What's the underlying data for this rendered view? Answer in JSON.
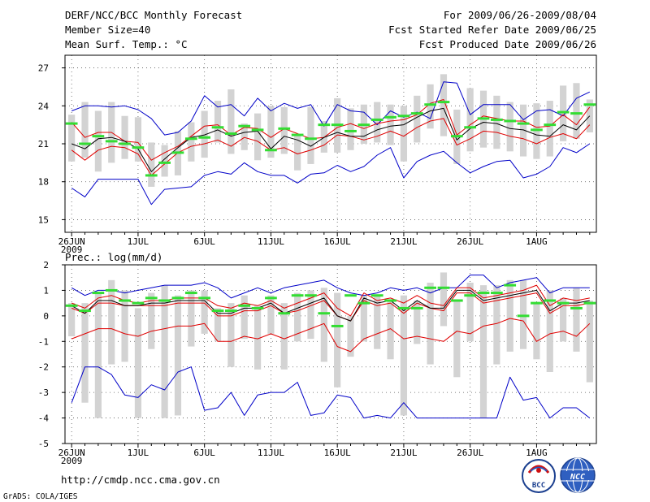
{
  "header": {
    "left": [
      "DERF/NCC/BCC Monthly Forecast",
      "Member Size=40",
      "Mean Surf. Temp.: °C"
    ],
    "right": [
      "For 2009/06/26-2009/08/04",
      "Fcst Started Refer Date 2009/06/25",
      "Fcst Produced Date 2009/06/26"
    ]
  },
  "footer": {
    "url": "http://cmdp.ncc.cma.gov.cn",
    "grads": "GrADS: COLA/IGES",
    "logo1_text": "BCC",
    "logo2_text": "NCC"
  },
  "colors": {
    "bar": "#d3d3d3",
    "envelope": "#0000c8",
    "spread": "#e00000",
    "mean": "#000000",
    "observed": "#33dd33"
  },
  "chart_data": [
    {
      "type": "line",
      "title": "Mean Surf. Temp.: °C",
      "x_tick_labels": [
        "26JUN",
        "1JUL",
        "6JUL",
        "11JUL",
        "16JUL",
        "21JUL",
        "26JUL",
        "1AUG"
      ],
      "x_year_label": "2009",
      "days": 40,
      "ylim": [
        14,
        28
      ],
      "yticks": [
        15,
        18,
        21,
        24,
        27
      ],
      "series": [
        {
          "name": "max",
          "values": [
            23.6,
            24.0,
            24.0,
            23.9,
            24.0,
            23.7,
            23.0,
            21.7,
            21.9,
            22.8,
            24.8,
            23.9,
            24.1,
            23.2,
            24.6,
            23.6,
            24.2,
            23.8,
            24.1,
            22.4,
            24.1,
            23.6,
            23.5,
            22.5,
            23.6,
            23.1,
            23.5,
            23.0,
            25.9,
            25.8,
            23.3,
            24.1,
            24.1,
            24.1,
            22.9,
            23.6,
            23.7,
            23.2,
            24.6,
            25.1
          ]
        },
        {
          "name": "upper",
          "values": [
            22.7,
            21.5,
            21.9,
            21.9,
            21.2,
            21.1,
            19.7,
            20.3,
            20.8,
            21.6,
            22.4,
            22.5,
            21.7,
            22.3,
            22.2,
            21.5,
            22.2,
            21.8,
            21.4,
            21.5,
            22.3,
            22.6,
            22.2,
            22.6,
            22.8,
            22.9,
            23.3,
            24.2,
            24.5,
            21.7,
            22.5,
            23.2,
            23.0,
            22.8,
            22.8,
            22.3,
            22.4,
            23.3,
            22.5,
            23.9
          ]
        },
        {
          "name": "mean",
          "values": [
            21.0,
            20.6,
            21.4,
            21.5,
            21.2,
            20.6,
            18.8,
            19.8,
            20.7,
            21.5,
            21.7,
            22.1,
            21.6,
            21.9,
            22.0,
            20.6,
            21.6,
            21.3,
            20.8,
            21.5,
            21.9,
            21.6,
            21.6,
            22.1,
            22.4,
            22.5,
            23.1,
            23.6,
            23.8,
            21.3,
            22.2,
            22.7,
            22.6,
            22.2,
            22.1,
            21.7,
            21.6,
            22.5,
            22.1,
            23.2
          ]
        },
        {
          "name": "lower",
          "values": [
            20.5,
            19.7,
            20.5,
            20.8,
            20.7,
            20.2,
            18.5,
            19.4,
            20.3,
            20.8,
            21.0,
            21.3,
            20.8,
            21.5,
            21.2,
            20.5,
            20.7,
            20.2,
            20.5,
            20.9,
            21.7,
            21.6,
            21.3,
            21.6,
            22.0,
            21.6,
            22.3,
            22.8,
            23.0,
            20.9,
            21.4,
            22.0,
            21.9,
            21.6,
            21.4,
            21.0,
            21.5,
            21.8,
            21.4,
            22.5
          ]
        },
        {
          "name": "min",
          "values": [
            17.5,
            16.8,
            18.2,
            18.2,
            18.2,
            18.2,
            16.2,
            17.4,
            17.5,
            17.6,
            18.5,
            18.8,
            18.6,
            19.5,
            18.8,
            18.5,
            18.5,
            17.9,
            18.6,
            18.7,
            19.3,
            18.8,
            19.2,
            20.1,
            20.7,
            18.3,
            19.6,
            20.1,
            20.4,
            19.5,
            18.7,
            19.2,
            19.6,
            19.7,
            18.3,
            18.6,
            19.2,
            20.7,
            20.3,
            21.0
          ]
        },
        {
          "name": "observed",
          "values": [
            22.6,
            21.0,
            21.6,
            21.2,
            21.0,
            20.7,
            18.5,
            19.5,
            20.3,
            21.4,
            21.5,
            22.3,
            21.8,
            22.4,
            22.1,
            20.5,
            22.2,
            21.7,
            21.4,
            22.5,
            22.5,
            22.0,
            22.5,
            22.9,
            23.1,
            23.2,
            23.4,
            24.1,
            24.3,
            21.6,
            22.3,
            23.0,
            22.9,
            22.8,
            22.6,
            22.1,
            22.5,
            23.5,
            23.4,
            24.1
          ]
        },
        {
          "name": "bar_top",
          "values": [
            23.3,
            24.3,
            23.6,
            24.3,
            23.2,
            23.1,
            21.1,
            20.9,
            22.0,
            22.7,
            23.6,
            24.4,
            25.3,
            22.6,
            23.4,
            24.0,
            23.9,
            21.7,
            23.9,
            22.8,
            24.6,
            23.8,
            24.1,
            24.3,
            24.1,
            24.0,
            24.8,
            25.7,
            26.5,
            23.7,
            25.4,
            25.2,
            24.8,
            24.3,
            24.1,
            24.2,
            24.4,
            25.6,
            25.8,
            24.5
          ]
        },
        {
          "name": "bar_bottom",
          "values": [
            19.6,
            19.9,
            18.8,
            19.5,
            19.8,
            19.6,
            17.6,
            18.4,
            18.5,
            19.6,
            19.9,
            21.1,
            20.2,
            20.5,
            19.7,
            19.9,
            20.2,
            18.9,
            19.4,
            20.3,
            20.3,
            20.5,
            21.0,
            21.1,
            20.9,
            19.6,
            21.1,
            22.2,
            21.6,
            19.4,
            20.4,
            20.7,
            20.6,
            20.4,
            20.0,
            19.8,
            20.0,
            21.2,
            21.4,
            21.9
          ]
        }
      ]
    },
    {
      "type": "line",
      "title": "Prec.: log(mm/d)",
      "x_tick_labels": [
        "26JUN",
        "1JUL",
        "6JUL",
        "11JUL",
        "16JUL",
        "21JUL",
        "26JUL",
        "1AUG"
      ],
      "x_year_label": "2009",
      "days": 40,
      "ylim": [
        -5,
        2
      ],
      "yticks": [
        -5,
        -4,
        -3,
        -2,
        -1,
        0,
        1,
        2
      ],
      "series": [
        {
          "name": "max",
          "values": [
            1.1,
            0.8,
            1.0,
            1.0,
            0.9,
            1.0,
            1.1,
            1.2,
            1.2,
            1.2,
            1.3,
            1.1,
            0.7,
            0.9,
            1.1,
            0.9,
            1.1,
            1.2,
            1.3,
            1.4,
            1.1,
            0.9,
            0.8,
            0.9,
            1.1,
            1.0,
            1.1,
            0.9,
            1.1,
            1.1,
            1.6,
            1.6,
            1.1,
            1.3,
            1.4,
            1.5,
            0.9,
            1.1,
            1.1,
            1.1
          ]
        },
        {
          "name": "upper",
          "values": [
            0.5,
            0.3,
            0.7,
            0.8,
            0.6,
            0.5,
            0.6,
            0.6,
            0.7,
            0.7,
            0.7,
            0.4,
            0.3,
            0.5,
            0.4,
            0.6,
            0.3,
            0.5,
            0.7,
            0.9,
            0.3,
            0.0,
            0.9,
            0.6,
            0.7,
            0.5,
            0.8,
            0.5,
            0.4,
            1.1,
            1.1,
            0.7,
            0.8,
            0.9,
            1.0,
            1.2,
            0.4,
            0.7,
            0.6,
            0.7
          ]
        },
        {
          "name": "mean",
          "values": [
            0.4,
            0.1,
            0.6,
            0.6,
            0.4,
            0.4,
            0.5,
            0.5,
            0.6,
            0.6,
            0.6,
            0.1,
            0.1,
            0.3,
            0.3,
            0.5,
            0.1,
            0.3,
            0.5,
            0.7,
            0.0,
            -0.2,
            0.7,
            0.5,
            0.6,
            0.2,
            0.6,
            0.3,
            0.3,
            1.0,
            1.0,
            0.6,
            0.7,
            0.8,
            0.9,
            1.0,
            0.2,
            0.5,
            0.5,
            0.6
          ]
        },
        {
          "name": "lower",
          "values": [
            0.3,
            0.1,
            0.5,
            0.5,
            0.4,
            0.4,
            0.4,
            0.4,
            0.5,
            0.5,
            0.5,
            0.0,
            0.0,
            0.2,
            0.2,
            0.4,
            0.1,
            0.2,
            0.4,
            0.6,
            0.0,
            -0.2,
            0.6,
            0.4,
            0.5,
            0.1,
            0.5,
            0.3,
            0.2,
            0.9,
            0.9,
            0.5,
            0.6,
            0.7,
            0.8,
            0.9,
            0.1,
            0.4,
            0.4,
            0.5
          ]
        },
        {
          "name": "spread_low",
          "values": [
            -0.9,
            -0.7,
            -0.5,
            -0.5,
            -0.7,
            -0.8,
            -0.6,
            -0.5,
            -0.4,
            -0.4,
            -0.3,
            -1.0,
            -1.0,
            -0.8,
            -0.9,
            -0.7,
            -0.9,
            -0.7,
            -0.5,
            -0.3,
            -1.2,
            -1.4,
            -0.9,
            -0.7,
            -0.5,
            -0.9,
            -0.8,
            -0.9,
            -1.0,
            -0.6,
            -0.7,
            -0.4,
            -0.3,
            -0.1,
            -0.2,
            -1.0,
            -0.7,
            -0.6,
            -0.8,
            -0.3
          ]
        },
        {
          "name": "min",
          "values": [
            -3.4,
            -2.0,
            -2.0,
            -2.3,
            -3.1,
            -3.2,
            -2.7,
            -2.9,
            -2.2,
            -2.0,
            -3.7,
            -3.6,
            -3.0,
            -3.9,
            -3.1,
            -3.0,
            -3.0,
            -2.6,
            -3.9,
            -3.8,
            -3.1,
            -3.2,
            -4.0,
            -3.9,
            -4.0,
            -3.4,
            -4.0,
            -4.0,
            -4.0,
            -4.0,
            -4.0,
            -4.0,
            -4.0,
            -2.4,
            -3.3,
            -3.2,
            -4.0,
            -3.6,
            -3.6,
            -4.0
          ]
        },
        {
          "name": "observed",
          "values": [
            0.4,
            0.2,
            0.9,
            1.0,
            0.6,
            0.5,
            0.7,
            0.6,
            0.7,
            0.9,
            0.7,
            0.2,
            0.2,
            0.4,
            0.3,
            0.7,
            0.1,
            0.8,
            0.8,
            0.1,
            -0.4,
            0.8,
            0.5,
            0.8,
            0.6,
            0.3,
            0.3,
            1.1,
            1.1,
            0.6,
            0.8,
            0.9,
            0.9,
            1.2,
            0.0,
            0.5,
            0.6,
            0.5,
            0.3,
            0.5
          ]
        },
        {
          "name": "bar_top",
          "values": [
            0.5,
            0.5,
            0.9,
            1.4,
            1.0,
            0.3,
            0.9,
            1.2,
            0.8,
            1.0,
            1.0,
            0.3,
            0.5,
            0.8,
            0.4,
            0.8,
            0.5,
            0.9,
            1.0,
            1.1,
            0.9,
            0.0,
            0.8,
            0.8,
            0.6,
            0.8,
            0.6,
            1.3,
            1.7,
            0.6,
            1.3,
            1.2,
            1.2,
            1.4,
            1.4,
            0.5,
            1.0,
            0.7,
            1.1,
            0.6
          ]
        },
        {
          "name": "bar_bottom",
          "values": [
            -0.8,
            -3.4,
            -4.0,
            -1.9,
            -1.8,
            -4.0,
            -1.3,
            -4.0,
            -3.9,
            -1.2,
            -0.7,
            -1.0,
            -2.0,
            -0.9,
            -2.1,
            -0.7,
            -2.1,
            -1.0,
            -0.9,
            -1.8,
            -2.8,
            -1.6,
            -1.0,
            -1.3,
            -1.7,
            -3.9,
            -1.1,
            -1.9,
            -0.4,
            -2.4,
            -1.0,
            -4.0,
            -1.9,
            -1.4,
            -1.3,
            -1.7,
            -2.2,
            -1.0,
            -1.4,
            -2.6
          ]
        }
      ]
    }
  ]
}
